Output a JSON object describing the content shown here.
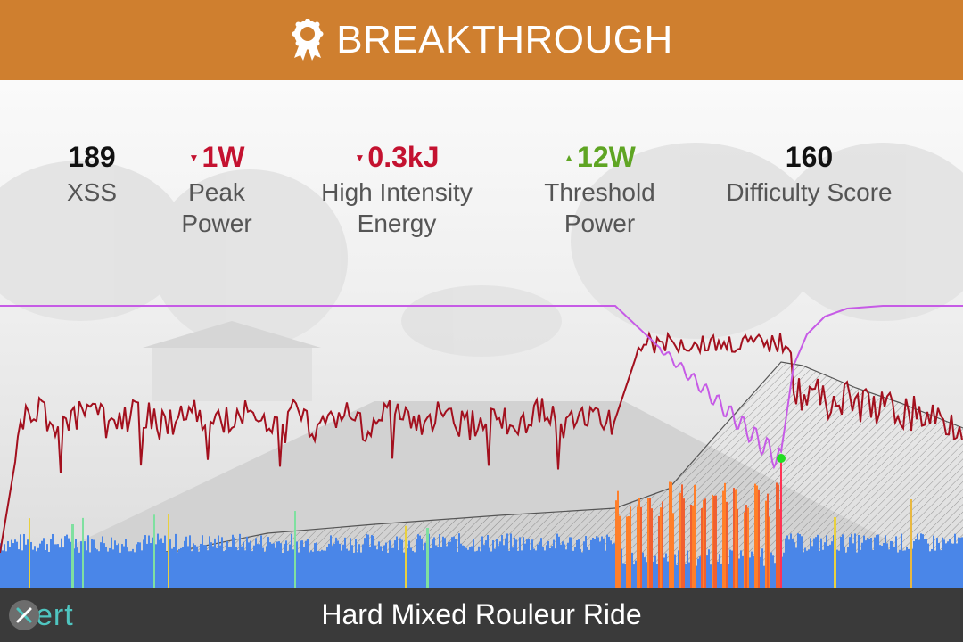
{
  "header": {
    "title": "BREAKTHROUGH",
    "icon": "award-ribbon-icon",
    "color": "#cf7f2f"
  },
  "stats": [
    {
      "value": "189",
      "label1": "XSS",
      "label2": "",
      "trend": "none"
    },
    {
      "value": "1W",
      "label1": "Peak",
      "label2": "Power",
      "trend": "down"
    },
    {
      "value": "0.3kJ",
      "label1": "High Intensity",
      "label2": "Energy",
      "trend": "down"
    },
    {
      "value": "12W",
      "label1": "Threshold",
      "label2": "Power",
      "trend": "up"
    },
    {
      "value": "160",
      "label1": "Difficulty Score",
      "label2": "",
      "trend": "none"
    }
  ],
  "footer": {
    "logo": "xert",
    "workout_name": "Hard Mixed Rouleur Ride"
  },
  "colors": {
    "power_line": "#a3101e",
    "mpa_line": "#c65be6",
    "bars_low": "#4a86e8",
    "bars_high": "#ff7f2a",
    "breakthrough_marker": "#22dd22",
    "trend_down": "#c41230",
    "trend_up": "#5fa523"
  }
}
